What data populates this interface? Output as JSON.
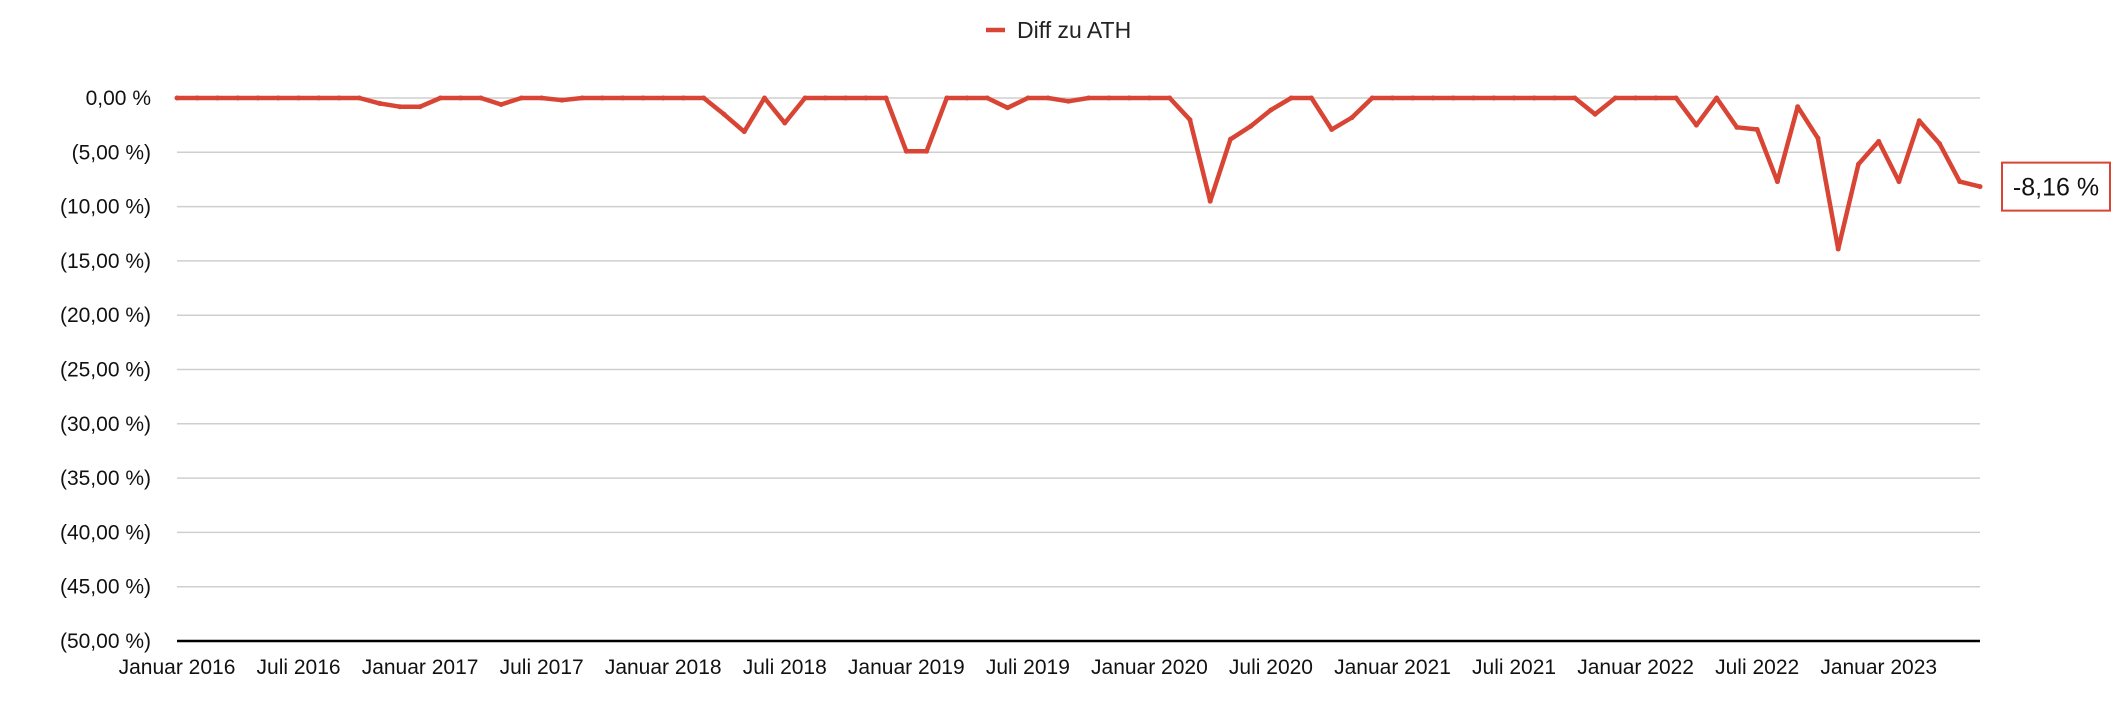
{
  "chart_data": {
    "type": "line",
    "title": "",
    "xlabel": "",
    "ylabel": "",
    "legend": {
      "placement": "top-center",
      "entries": [
        "Diff zu ATH"
      ]
    },
    "grid": true,
    "ylim": [
      -50,
      0
    ],
    "yticks": [
      0,
      -5,
      -10,
      -15,
      -20,
      -25,
      -30,
      -35,
      -40,
      -45,
      -50
    ],
    "ytick_labels": [
      "0,00 %",
      "(5,00 %)",
      "(10,00 %)",
      "(15,00 %)",
      "(20,00 %)",
      "(25,00 %)",
      "(30,00 %)",
      "(35,00 %)",
      "(40,00 %)",
      "(45,00 %)",
      "(50,00 %)"
    ],
    "x_start": "Januar 2016",
    "x_end": "Februar 2023",
    "xtick_labels": [
      "Januar 2016",
      "Juli 2016",
      "Januar 2017",
      "Juli 2017",
      "Januar 2018",
      "Juli 2018",
      "Januar 2019",
      "Juli 2019",
      "Januar 2020",
      "Juli 2020",
      "Januar 2021",
      "Juli 2021",
      "Januar 2022",
      "Juli 2022",
      "Januar 2023"
    ],
    "series": [
      {
        "name": "Diff zu ATH",
        "color": "#d94535",
        "values": [
          0,
          0,
          0,
          0,
          0,
          0,
          0,
          0,
          0,
          0,
          -0.5,
          -0.8,
          -0.8,
          0,
          0,
          0,
          -0.6,
          0,
          0,
          -0.2,
          0,
          0,
          0,
          0,
          0,
          0,
          0,
          -1.5,
          -3.1,
          0,
          -2.3,
          0,
          0,
          0,
          0,
          0,
          -4.9,
          -4.9,
          0,
          0,
          0,
          -0.9,
          0,
          0,
          -0.3,
          0,
          0,
          0,
          0,
          0,
          -2.0,
          -9.5,
          -3.8,
          -2.6,
          -1.1,
          0,
          0,
          -2.9,
          -1.8,
          0,
          0,
          0,
          0,
          0,
          0,
          0,
          0,
          0,
          0,
          0,
          -1.5,
          0,
          0,
          0,
          0,
          -2.5,
          0,
          -2.7,
          -2.9,
          -7.7,
          -0.8,
          -3.7,
          -13.9,
          -6.1,
          -4.0,
          -7.7,
          -2.1,
          -4.2,
          -7.7,
          -8.16
        ]
      }
    ],
    "annotations": [
      {
        "text": "-8,16 %",
        "target": "last-point",
        "placement": "right"
      }
    ]
  }
}
